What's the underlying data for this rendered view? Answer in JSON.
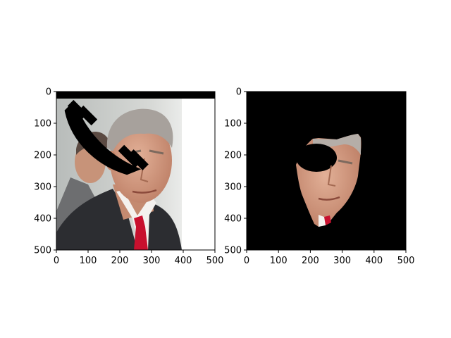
{
  "figure": {
    "background": "#ffffff"
  },
  "chart_data": [
    {
      "type": "image",
      "title": "",
      "xlabel": "",
      "ylabel": "",
      "xlim": [
        0,
        500
      ],
      "ylim": [
        500,
        0
      ],
      "xticks": [
        0,
        100,
        200,
        300,
        400,
        500
      ],
      "yticks": [
        0,
        100,
        200,
        300,
        400,
        500
      ],
      "grid": false,
      "content": "photo of a man in a dark suit with a red tie, partially covered by black occlusion shapes",
      "occlusion_color": "#000000"
    },
    {
      "type": "image",
      "title": "",
      "xlabel": "",
      "ylabel": "",
      "xlim": [
        0,
        500
      ],
      "ylim": [
        500,
        0
      ],
      "xticks": [
        0,
        100,
        200,
        300,
        400,
        500
      ],
      "yticks": [
        0,
        100,
        200,
        300,
        400,
        500
      ],
      "grid": false,
      "content": "segmented face region on a black background",
      "background_color": "#000000"
    }
  ],
  "colors": {
    "suit": "#2c2d31",
    "tie": "#c8102e",
    "skin": "#d39a80",
    "hair": "#a7a19c",
    "shirt": "#f4f1ee",
    "bg_left": "#c9ccc9",
    "bg_right": "#ffffff"
  }
}
